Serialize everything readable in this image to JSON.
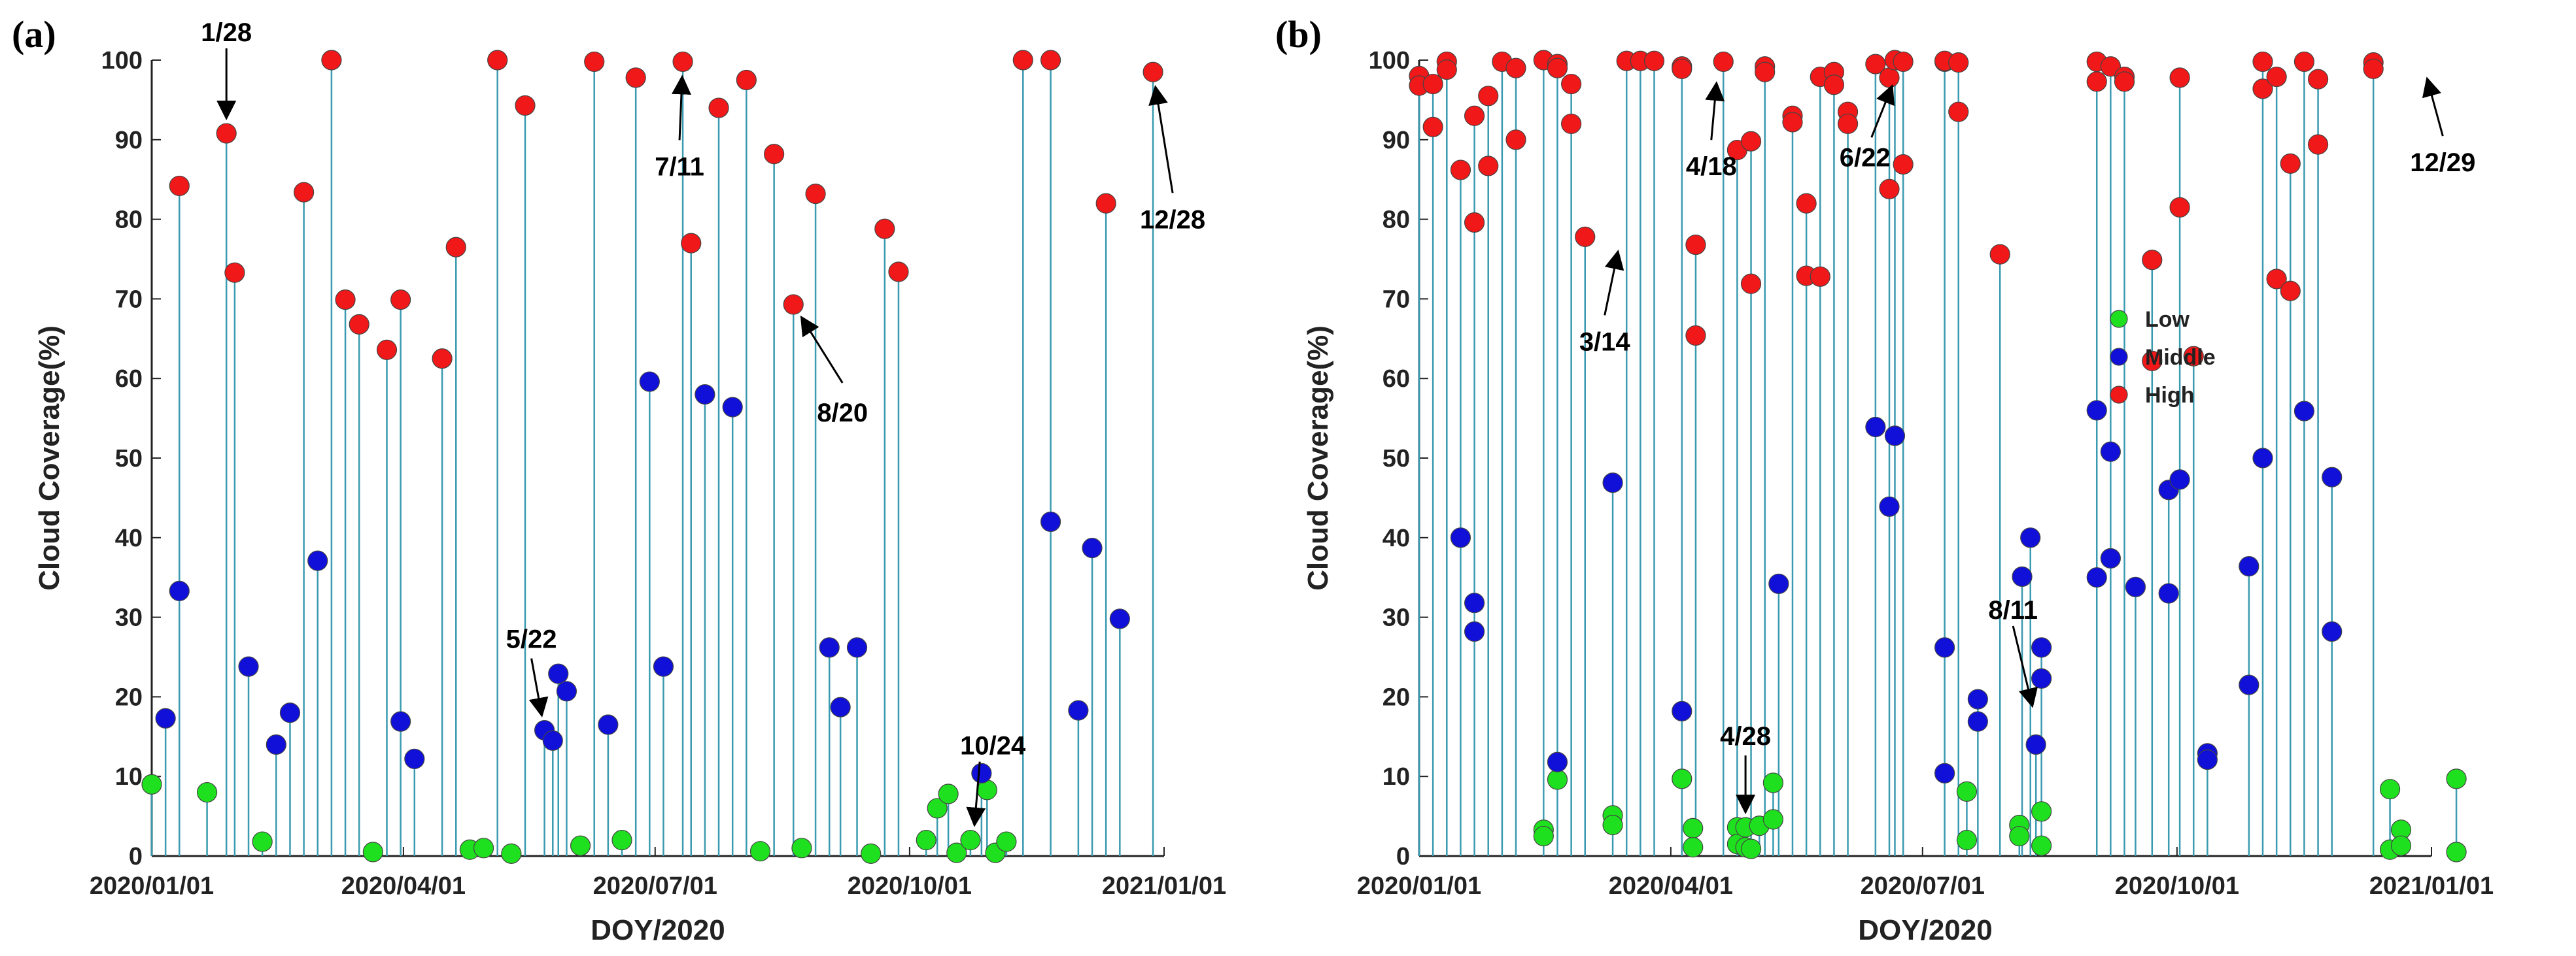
{
  "series_colors": {
    "Low": "#1fe01f",
    "Middle": "#1010d8",
    "High": "#f01818"
  },
  "stem_color": "#3a9ab0",
  "chart_data": [
    {
      "type": "stem",
      "panel_label": "(a)",
      "title": "",
      "xlabel": "DOY/2020",
      "ylabel": "Cloud Coverage(%)",
      "ylim": [
        0,
        100
      ],
      "yticks": [
        0,
        10,
        20,
        30,
        40,
        50,
        60,
        70,
        80,
        90,
        100
      ],
      "xlim": [
        1,
        367
      ],
      "xticks": [
        {
          "doy": 1,
          "label": "2020/01/01"
        },
        {
          "doy": 92,
          "label": "2020/04/01"
        },
        {
          "doy": 183,
          "label": "2020/07/01"
        },
        {
          "doy": 275,
          "label": "2020/10/01"
        },
        {
          "doy": 367,
          "label": "2021/01/01"
        }
      ],
      "legend": null,
      "series": [
        {
          "name": "Low",
          "points": [
            [
              1,
              9
            ],
            [
              21,
              8
            ],
            [
              41,
              1.8
            ],
            [
              81,
              0.5
            ],
            [
              116,
              0.8
            ],
            [
              121,
              1
            ],
            [
              131,
              0.3
            ],
            [
              156,
              1.3
            ],
            [
              171,
              2
            ],
            [
              221,
              0.6
            ],
            [
              236,
              1
            ],
            [
              261,
              0.3
            ],
            [
              281,
              2
            ],
            [
              285,
              6
            ],
            [
              289,
              7.8
            ],
            [
              292,
              0.4
            ],
            [
              297,
              2
            ],
            [
              303,
              8.3
            ],
            [
              306,
              0.4
            ],
            [
              310,
              1.8
            ]
          ]
        },
        {
          "name": "Middle",
          "points": [
            [
              6,
              17.3
            ],
            [
              11,
              33.3
            ],
            [
              36,
              23.8
            ],
            [
              46,
              14
            ],
            [
              51,
              18
            ],
            [
              61,
              37.1
            ],
            [
              91,
              16.9
            ],
            [
              96,
              12.2
            ],
            [
              143,
              15.8
            ],
            [
              146,
              14.5
            ],
            [
              148,
              22.9
            ],
            [
              151,
              20.7
            ],
            [
              166,
              16.5
            ],
            [
              181,
              59.6
            ],
            [
              186,
              23.8
            ],
            [
              201,
              58
            ],
            [
              211,
              56.4
            ],
            [
              246,
              26.2
            ],
            [
              250,
              18.7
            ],
            [
              256,
              26.2
            ],
            [
              301,
              10.4
            ],
            [
              326,
              42
            ],
            [
              336,
              18.3
            ],
            [
              341,
              38.7
            ],
            [
              351,
              29.8
            ]
          ]
        },
        {
          "name": "High",
          "points": [
            [
              11,
              84.2
            ],
            [
              28,
              90.8
            ],
            [
              31,
              73.3
            ],
            [
              56,
              83.4
            ],
            [
              66,
              100
            ],
            [
              71,
              69.9
            ],
            [
              76,
              66.8
            ],
            [
              86,
              63.6
            ],
            [
              91,
              69.9
            ],
            [
              106,
              62.5
            ],
            [
              111,
              76.5
            ],
            [
              126,
              100
            ],
            [
              136,
              94.3
            ],
            [
              161,
              99.8
            ],
            [
              176,
              97.8
            ],
            [
              193,
              99.8
            ],
            [
              196,
              77
            ],
            [
              206,
              94
            ],
            [
              216,
              97.5
            ],
            [
              226,
              88.2
            ],
            [
              233,
              69.3
            ],
            [
              241,
              83.2
            ],
            [
              266,
              78.8
            ],
            [
              271,
              73.4
            ],
            [
              316,
              100
            ],
            [
              326,
              100
            ],
            [
              346,
              82
            ],
            [
              363,
              98.5
            ]
          ]
        }
      ],
      "annotations": [
        {
          "text": "1/28",
          "doy": 28,
          "value": 90.8
        },
        {
          "text": "5/22",
          "doy": 143,
          "value": 15.8
        },
        {
          "text": "7/11",
          "doy": 193,
          "value": 99.8
        },
        {
          "text": "8/20",
          "doy": 233,
          "value": 69.3
        },
        {
          "text": "10/24",
          "doy": 298,
          "value": 2
        },
        {
          "text": "12/28",
          "doy": 363,
          "value": 98.5
        }
      ]
    },
    {
      "type": "stem",
      "panel_label": "(b)",
      "title": "",
      "xlabel": "DOY/2020",
      "ylabel": "Cloud Coverage(%)",
      "ylim": [
        0,
        100
      ],
      "yticks": [
        0,
        10,
        20,
        30,
        40,
        50,
        60,
        70,
        80,
        90,
        100
      ],
      "xlim": [
        1,
        367
      ],
      "xticks": [
        {
          "doy": 1,
          "label": "2020/01/01"
        },
        {
          "doy": 92,
          "label": "2020/04/01"
        },
        {
          "doy": 183,
          "label": "2020/07/01"
        },
        {
          "doy": 275,
          "label": "2020/10/01"
        },
        {
          "doy": 367,
          "label": "2021/01/01"
        }
      ],
      "legend": {
        "position": "right",
        "entries": [
          "Low",
          "Middle",
          "High"
        ]
      },
      "series": [
        {
          "name": "Low",
          "points": [
            [
              46,
              3.3
            ],
            [
              46,
              2.5
            ],
            [
              51,
              9.6
            ],
            [
              71,
              5.1
            ],
            [
              71,
              3.9
            ],
            [
              96,
              9.7
            ],
            [
              100,
              3.5
            ],
            [
              100,
              1.1
            ],
            [
              116,
              3.6
            ],
            [
              116,
              1.5
            ],
            [
              119,
              3.6
            ],
            [
              119,
              1.1
            ],
            [
              121,
              0.9
            ],
            [
              124,
              3.8
            ],
            [
              129,
              9.2
            ],
            [
              129,
              4.6
            ],
            [
              199,
              8.1
            ],
            [
              199,
              2
            ],
            [
              218,
              3.9
            ],
            [
              218,
              2.5
            ],
            [
              226,
              5.6
            ],
            [
              226,
              1.3
            ],
            [
              352,
              8.4
            ],
            [
              352,
              0.8
            ],
            [
              356,
              3.3
            ],
            [
              356,
              1.3
            ],
            [
              376,
              9.7
            ],
            [
              376,
              0.5
            ]
          ]
        },
        {
          "name": "Middle",
          "points": [
            [
              16,
              40
            ],
            [
              21,
              31.8
            ],
            [
              21,
              28.2
            ],
            [
              51,
              11.8
            ],
            [
              71,
              46.9
            ],
            [
              96,
              18.2
            ],
            [
              131,
              34.2
            ],
            [
              166,
              53.9
            ],
            [
              171,
              43.9
            ],
            [
              173,
              52.8
            ],
            [
              191,
              26.2
            ],
            [
              191,
              10.4
            ],
            [
              203,
              19.7
            ],
            [
              203,
              16.9
            ],
            [
              219,
              35.1
            ],
            [
              222,
              40
            ],
            [
              224,
              14
            ],
            [
              226,
              26.2
            ],
            [
              226,
              22.3
            ],
            [
              246,
              56
            ],
            [
              246,
              35
            ],
            [
              251,
              50.8
            ],
            [
              251,
              37.4
            ],
            [
              260,
              33.8
            ],
            [
              272,
              46
            ],
            [
              272,
              33
            ],
            [
              276,
              47.3
            ],
            [
              286,
              12.9
            ],
            [
              286,
              12.1
            ],
            [
              301,
              21.5
            ],
            [
              301,
              36.4
            ],
            [
              306,
              50
            ],
            [
              321,
              55.9
            ],
            [
              331,
              28.2
            ],
            [
              331,
              47.6
            ]
          ]
        },
        {
          "name": "High",
          "points": [
            [
              1,
              98
            ],
            [
              1,
              96.8
            ],
            [
              6,
              97
            ],
            [
              6,
              91.6
            ],
            [
              11,
              99.8
            ],
            [
              11,
              98.8
            ],
            [
              16,
              86.2
            ],
            [
              21,
              93
            ],
            [
              21,
              79.6
            ],
            [
              26,
              95.5
            ],
            [
              26,
              86.7
            ],
            [
              31,
              99.8
            ],
            [
              36,
              99
            ],
            [
              36,
              90
            ],
            [
              46,
              100
            ],
            [
              51,
              99.5
            ],
            [
              51,
              99
            ],
            [
              56,
              97
            ],
            [
              56,
              92
            ],
            [
              61,
              77.8
            ],
            [
              76,
              99.9
            ],
            [
              81,
              99.9
            ],
            [
              86,
              99.9
            ],
            [
              96,
              99.2
            ],
            [
              96,
              98.9
            ],
            [
              101,
              76.8
            ],
            [
              101,
              65.4
            ],
            [
              111,
              99.8
            ],
            [
              116,
              88.7
            ],
            [
              121,
              89.8
            ],
            [
              121,
              71.9
            ],
            [
              126,
              99.2
            ],
            [
              126,
              98.5
            ],
            [
              136,
              93
            ],
            [
              136,
              92.2
            ],
            [
              141,
              82
            ],
            [
              141,
              72.9
            ],
            [
              146,
              72.8
            ],
            [
              146,
              97.9
            ],
            [
              151,
              98.5
            ],
            [
              151,
              96.9
            ],
            [
              156,
              93.5
            ],
            [
              156,
              92
            ],
            [
              166,
              99.5
            ],
            [
              171,
              97.8
            ],
            [
              171,
              83.8
            ],
            [
              173,
              100
            ],
            [
              176,
              86.9
            ],
            [
              176,
              99.8
            ],
            [
              191,
              99.8
            ],
            [
              191,
              99.9
            ],
            [
              196,
              99.7
            ],
            [
              196,
              93.5
            ],
            [
              211,
              75.6
            ],
            [
              246,
              99.8
            ],
            [
              246,
              97.3
            ],
            [
              251,
              99.2
            ],
            [
              256,
              97.9
            ],
            [
              256,
              97.3
            ],
            [
              266,
              74.9
            ],
            [
              266,
              62.2
            ],
            [
              276,
              97.8
            ],
            [
              276,
              81.5
            ],
            [
              281,
              62.8
            ],
            [
              306,
              99.8
            ],
            [
              306,
              96.4
            ],
            [
              311,
              97.9
            ],
            [
              311,
              72.5
            ],
            [
              316,
              87
            ],
            [
              316,
              71
            ],
            [
              321,
              99.8
            ],
            [
              326,
              97.6
            ],
            [
              326,
              89.4
            ],
            [
              346,
              99.7
            ],
            [
              346,
              98.9
            ]
          ]
        }
      ],
      "annotations": [
        {
          "text": "3/14",
          "doy": 74,
          "value": 77.8
        },
        {
          "text": "4/18",
          "doy": 109,
          "value": 99
        },
        {
          "text": "4/28",
          "doy": 119,
          "value": 3.6
        },
        {
          "text": "6/22",
          "doy": 174,
          "value": 98.5
        },
        {
          "text": "8/11",
          "doy": 224,
          "value": 17
        },
        {
          "text": "12/29",
          "doy": 364,
          "value": 99.5
        }
      ]
    }
  ]
}
